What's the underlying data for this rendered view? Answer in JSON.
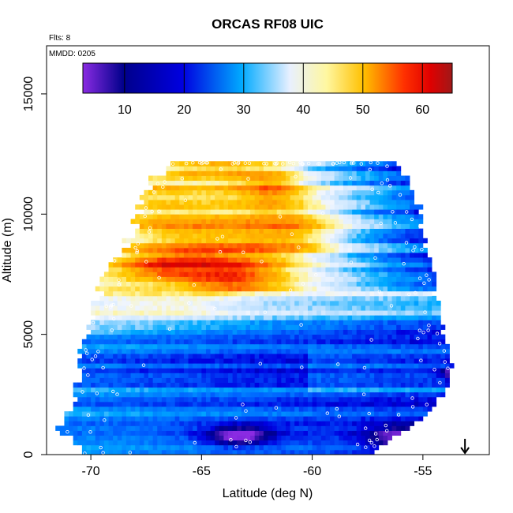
{
  "chart_data": {
    "type": "heatmap",
    "title": "ORCAS RF08 UIC",
    "annotations": {
      "flights": "Flts: 8",
      "date": "MMDD: 0205"
    },
    "xlabel": "Latitude (deg N)",
    "ylabel": "Altitude (m)",
    "xlim": [
      -72,
      -52
    ],
    "ylim": [
      0,
      17000
    ],
    "x_ticks": [
      -70,
      -65,
      -60,
      -55
    ],
    "y_ticks": [
      0,
      5000,
      10000,
      15000
    ],
    "colorbar": {
      "range": [
        3,
        65
      ],
      "ticks": [
        10,
        20,
        30,
        40,
        50,
        60
      ],
      "placement": "top-inside"
    },
    "arrow_marker": {
      "x": -53.1,
      "direction": "down"
    },
    "envelope": [
      {
        "alt": 0,
        "lat_min": -70.5,
        "lat_max": -57.5
      },
      {
        "alt": 1000,
        "lat_min": -71.4,
        "lat_max": -56.0
      },
      {
        "alt": 2000,
        "lat_min": -71.0,
        "lat_max": -54.5
      },
      {
        "alt": 3000,
        "lat_min": -70.8,
        "lat_max": -53.8
      },
      {
        "alt": 4000,
        "lat_min": -70.5,
        "lat_max": -53.9
      },
      {
        "alt": 5000,
        "lat_min": -70.3,
        "lat_max": -54.1
      },
      {
        "alt": 6000,
        "lat_min": -70.0,
        "lat_max": -54.3
      },
      {
        "alt": 7000,
        "lat_min": -69.6,
        "lat_max": -54.6
      },
      {
        "alt": 8000,
        "lat_min": -69.0,
        "lat_max": -54.8
      },
      {
        "alt": 9000,
        "lat_min": -68.4,
        "lat_max": -55.0
      },
      {
        "alt": 10000,
        "lat_min": -68.0,
        "lat_max": -55.2
      },
      {
        "alt": 11000,
        "lat_min": -67.6,
        "lat_max": -55.6
      },
      {
        "alt": 11800,
        "lat_min": -67.0,
        "lat_max": -56.0
      },
      {
        "alt": 12200,
        "lat_min": -66.5,
        "lat_max": -56.3
      }
    ],
    "features": [
      {
        "lat": -65.5,
        "alt": 7900,
        "value": 62,
        "lat_width": 3.0,
        "alt_width": 500
      },
      {
        "lat": -64.8,
        "alt": 7400,
        "value": 58,
        "lat_width": 2.0,
        "alt_width": 600
      },
      {
        "lat": -62.3,
        "alt": 11000,
        "value": 58,
        "lat_width": 1.4,
        "alt_width": 700
      },
      {
        "lat": -62.0,
        "alt": 9200,
        "value": 52,
        "lat_width": 2.5,
        "alt_width": 900
      },
      {
        "lat": -64.0,
        "alt": 9800,
        "value": 48,
        "lat_width": 3.5,
        "alt_width": 1200
      },
      {
        "lat": -65.0,
        "alt": 10800,
        "value": 42,
        "lat_width": 3.0,
        "alt_width": 1000
      },
      {
        "lat": -66.5,
        "alt": 6600,
        "value": 38,
        "lat_width": 2.5,
        "alt_width": 700
      },
      {
        "lat": -56.0,
        "alt": 700,
        "value": 5,
        "lat_width": 1.5,
        "alt_width": 500
      },
      {
        "lat": -63.3,
        "alt": 800,
        "value": 3,
        "lat_width": 1.5,
        "alt_width": 400
      },
      {
        "lat": -53.6,
        "alt": 3400,
        "value": 3,
        "lat_width": 0.5,
        "alt_width": 250
      }
    ]
  }
}
